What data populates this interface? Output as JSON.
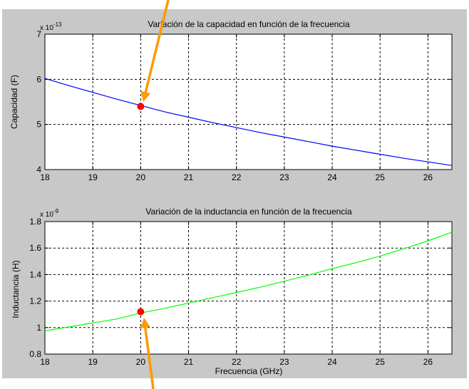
{
  "chart_data": [
    {
      "type": "line",
      "title": "Variación de la capacidad en función de la frecuencia",
      "xlabel": "",
      "ylabel": "Capacidad (F)",
      "exponent_base": "x 10",
      "exponent_power": "-13",
      "xlim": [
        18,
        26.5
      ],
      "ylim": [
        4,
        7
      ],
      "xticks": [
        "18",
        "19",
        "20",
        "21",
        "22",
        "23",
        "24",
        "25",
        "26"
      ],
      "yticks": [
        "4",
        "5",
        "6",
        "7"
      ],
      "grid": true,
      "line_color": "#0000ff",
      "series": [
        {
          "x": [
            18,
            18.5,
            19,
            19.5,
            20,
            20.5,
            21,
            21.5,
            22,
            22.5,
            23,
            23.5,
            24,
            24.5,
            25,
            25.5,
            26,
            26.5
          ],
          "values": [
            6.02,
            5.86,
            5.71,
            5.56,
            5.42,
            5.28,
            5.16,
            5.04,
            4.93,
            4.82,
            4.72,
            4.62,
            4.52,
            4.43,
            4.34,
            4.25,
            4.17,
            4.09
          ]
        }
      ],
      "highlight_point": {
        "x": 20,
        "y": 5.4,
        "color": "#ff0000"
      },
      "annotation_arrow": {
        "direction": "from-above",
        "color": "#ff9900"
      }
    },
    {
      "type": "line",
      "title": "Variación de la inductancia en función de la frecuencia",
      "xlabel": "Frecuencia (GHz)",
      "ylabel": "Inductancia (H)",
      "exponent_base": "x 10",
      "exponent_power": "-9",
      "xlim": [
        18,
        26.5
      ],
      "ylim": [
        0.8,
        1.8
      ],
      "xticks": [
        "18",
        "19",
        "20",
        "21",
        "22",
        "23",
        "24",
        "25",
        "26"
      ],
      "yticks": [
        "0.8",
        "1",
        "1.2",
        "1.4",
        "1.6",
        "1.8"
      ],
      "grid": true,
      "line_color": "#00ff00",
      "series": [
        {
          "x": [
            18,
            18.5,
            19,
            19.5,
            20,
            20.5,
            21,
            21.5,
            22,
            22.5,
            23,
            23.5,
            24,
            24.5,
            25,
            25.5,
            26,
            26.5
          ],
          "values": [
            0.975,
            1.005,
            1.035,
            1.065,
            1.11,
            1.145,
            1.185,
            1.225,
            1.265,
            1.305,
            1.35,
            1.395,
            1.445,
            1.49,
            1.54,
            1.595,
            1.655,
            1.72
          ]
        }
      ],
      "highlight_point": {
        "x": 20,
        "y": 1.12,
        "color": "#ff0000"
      },
      "annotation_arrow": {
        "direction": "from-below",
        "color": "#ff9900"
      }
    }
  ],
  "colors": {
    "figure_background": "#c8c8c8",
    "axes_background": "#ffffff",
    "arrow": "#ff9900"
  }
}
